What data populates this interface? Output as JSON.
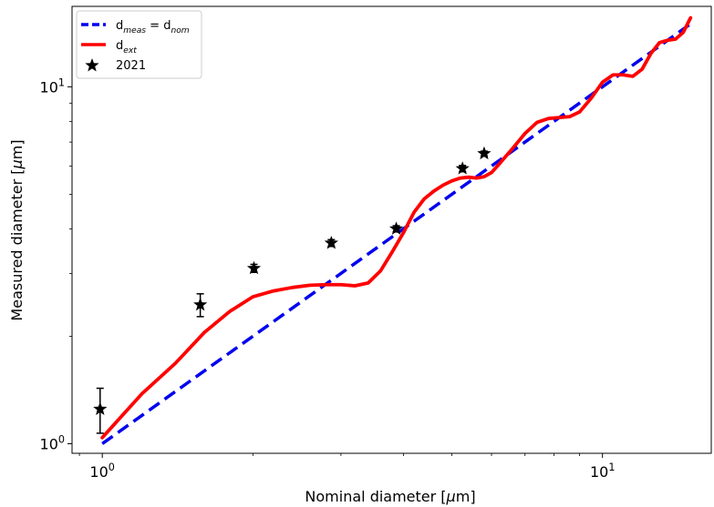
{
  "chart_data": {
    "type": "line",
    "title": "",
    "xlabel": "Nominal diameter [$\\mu$m]",
    "ylabel": "Measured diameter [$\\mu$m]",
    "x_scale": "log",
    "y_scale": "log",
    "xlim": [
      0.87,
      16.5
    ],
    "ylim": [
      0.94,
      16.8
    ],
    "x_ticks": [
      {
        "value": 1,
        "label": "10^0"
      },
      {
        "value": 10,
        "label": "10^1"
      }
    ],
    "y_ticks": [
      {
        "value": 1,
        "label": "10^0"
      },
      {
        "value": 10,
        "label": "10^1"
      }
    ],
    "grid": false,
    "legend_placement": "top-left",
    "colors": {
      "reference": "#0000ee",
      "ext": "#ff0000",
      "points": "#000000"
    },
    "series": [
      {
        "name": "d_meas = d_nom",
        "style": "dashed",
        "color": "#0000ee",
        "x": [
          1.0,
          15.0
        ],
        "y": [
          1.0,
          15.0
        ]
      },
      {
        "name": "d_ext",
        "style": "solid",
        "color": "#ff0000",
        "x": [
          1.0,
          1.2,
          1.4,
          1.6,
          1.8,
          2.0,
          2.2,
          2.4,
          2.6,
          2.8,
          3.0,
          3.2,
          3.4,
          3.6,
          3.8,
          4.0,
          4.2,
          4.4,
          4.6,
          4.8,
          5.0,
          5.2,
          5.4,
          5.6,
          5.8,
          6.0,
          6.2,
          6.6,
          7.0,
          7.4,
          7.8,
          8.2,
          8.6,
          9.0,
          9.5,
          10.0,
          10.5,
          11.0,
          11.5,
          12.0,
          12.5,
          13.0,
          13.5,
          14.0,
          14.5,
          15.0
        ],
        "y": [
          1.04,
          1.38,
          1.68,
          2.05,
          2.35,
          2.58,
          2.68,
          2.74,
          2.78,
          2.79,
          2.79,
          2.77,
          2.82,
          3.05,
          3.45,
          3.9,
          4.45,
          4.85,
          5.1,
          5.3,
          5.45,
          5.55,
          5.58,
          5.55,
          5.6,
          5.75,
          6.05,
          6.7,
          7.4,
          7.95,
          8.15,
          8.2,
          8.25,
          8.5,
          9.3,
          10.3,
          10.8,
          10.8,
          10.7,
          11.2,
          12.4,
          13.3,
          13.5,
          13.6,
          14.2,
          15.6
        ]
      },
      {
        "name": "2021",
        "style": "markers",
        "marker": "star",
        "color": "#000000",
        "x": [
          0.99,
          1.57,
          2.01,
          2.87,
          3.87,
          5.25,
          5.8
        ],
        "y": [
          1.25,
          2.45,
          3.1,
          3.65,
          4.0,
          5.9,
          6.5
        ],
        "y_err": [
          0.18,
          0.18,
          0.08,
          0.08,
          0.08,
          0.12,
          0.1
        ]
      }
    ]
  }
}
